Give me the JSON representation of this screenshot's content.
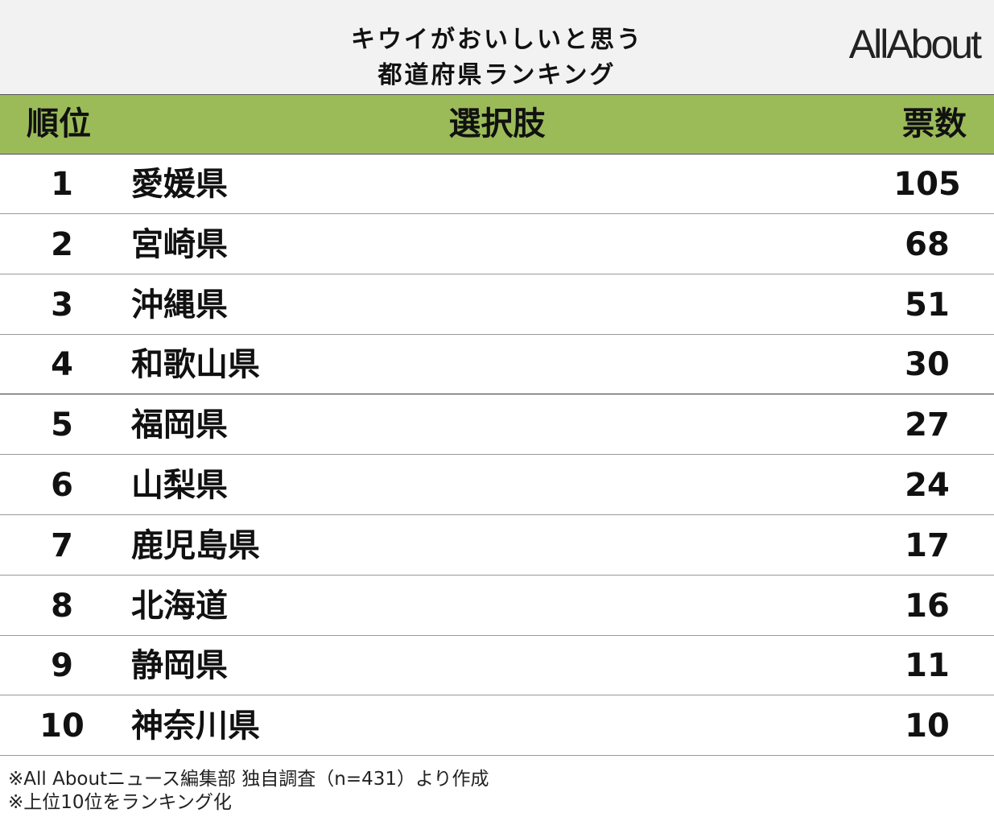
{
  "header": {
    "title_lines": [
      "キウイがおいしいと思う",
      "都道府県ランキング"
    ],
    "logo": "AllAbout"
  },
  "table": {
    "columns": [
      "順位",
      "選択肢",
      "票数"
    ],
    "rows": [
      [
        1,
        "愛媛県",
        105
      ],
      [
        2,
        "宮崎県",
        68
      ],
      [
        3,
        "沖縄県",
        51
      ],
      [
        4,
        "和歌山県",
        30
      ],
      [
        5,
        "福岡県",
        27
      ],
      [
        6,
        "山梨県",
        24
      ],
      [
        7,
        "鹿児島県",
        17
      ],
      [
        8,
        "北海道",
        16
      ],
      [
        9,
        "静岡県",
        11
      ],
      [
        10,
        "神奈川県",
        10
      ]
    ]
  },
  "footnotes": [
    "※All Aboutニュース編集部 独自調査（n=431）より作成",
    "※上位10位をランキング化"
  ]
}
